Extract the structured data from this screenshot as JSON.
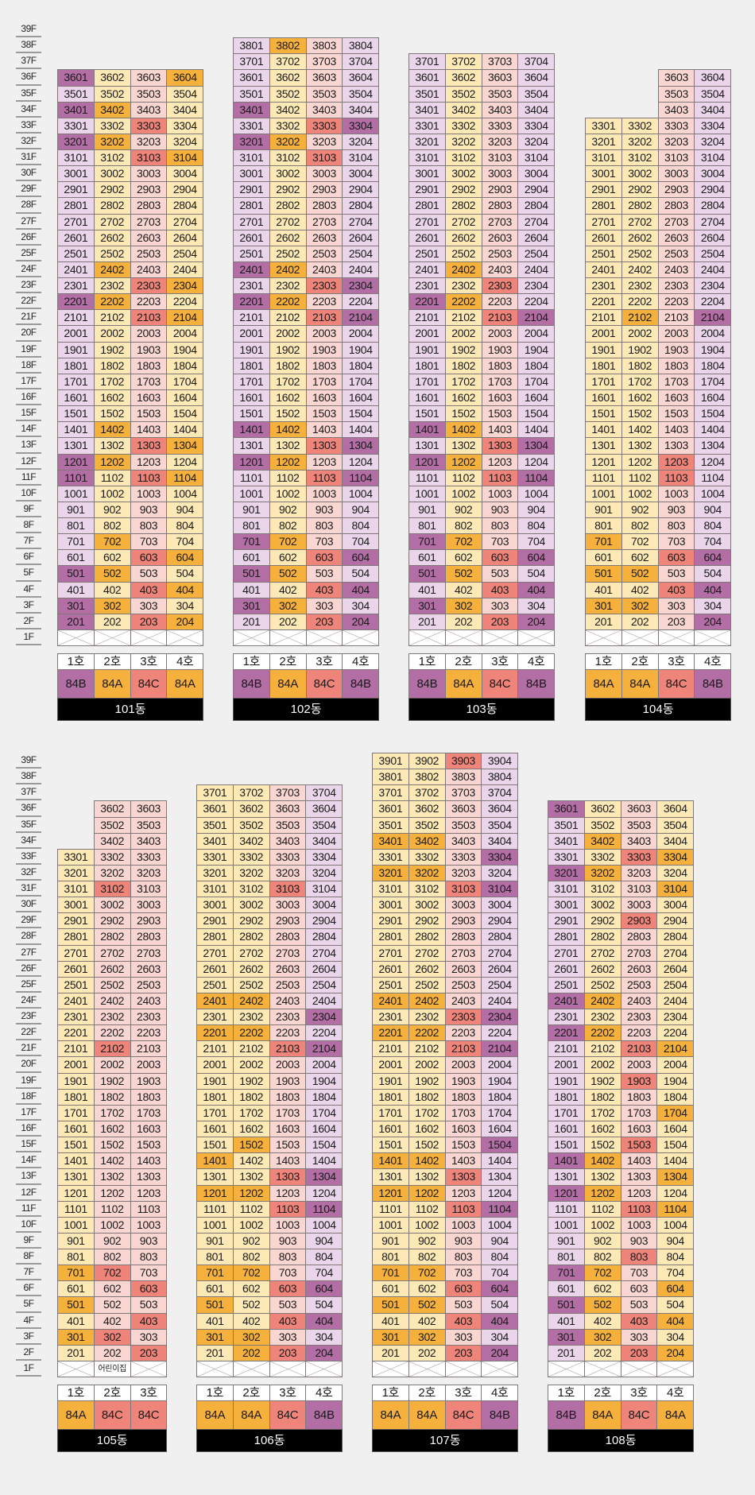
{
  "floor_labels": [
    "39F",
    "38F",
    "37F",
    "36F",
    "35F",
    "34F",
    "33F",
    "32F",
    "31F",
    "30F",
    "29F",
    "28F",
    "27F",
    "26F",
    "25F",
    "24F",
    "23F",
    "22F",
    "21F",
    "20F",
    "19F",
    "18F",
    "17F",
    "16F",
    "15F",
    "14F",
    "13F",
    "12F",
    "11F",
    "10F",
    "9F",
    "8F",
    "7F",
    "6F",
    "5F",
    "4F",
    "3F",
    "2F",
    "1F"
  ],
  "type_colors": {
    "84A": {
      "light": "#fde9b6",
      "dark": "#f6b03c"
    },
    "84B": {
      "light": "#ead5ea",
      "dark": "#b46ea6"
    },
    "84C": {
      "light": "#f9d6d1",
      "dark": "#ef857a"
    }
  },
  "sections": [
    {
      "buildings": [
        {
          "name": "101동",
          "units": [
            {
              "label": "1호",
              "type": "84B",
              "floors": [
                2,
                36
              ]
            },
            {
              "label": "2호",
              "type": "84A",
              "floors": [
                2,
                36
              ]
            },
            {
              "label": "3호",
              "type": "84C",
              "floors": [
                2,
                36
              ]
            },
            {
              "label": "4호",
              "type": "84A",
              "floors": [
                2,
                36
              ]
            }
          ],
          "first_floor": [
            null,
            null,
            null,
            null
          ],
          "highlighted": [
            "3601",
            "3604",
            "3401",
            "3402",
            "3303",
            "3201",
            "3202",
            "3103",
            "3104",
            "2402",
            "2303",
            "2304",
            "2201",
            "2202",
            "2103",
            "2104",
            "1402",
            "1303",
            "1304",
            "1201",
            "1202",
            "1101",
            "1103",
            "1104",
            "702",
            "603",
            "604",
            "501",
            "502",
            "403",
            "404",
            "301",
            "302",
            "201",
            "203",
            "204"
          ]
        },
        {
          "name": "102동",
          "units": [
            {
              "label": "1호",
              "type": "84B",
              "floors": [
                2,
                38
              ]
            },
            {
              "label": "2호",
              "type": "84A",
              "floors": [
                2,
                38
              ]
            },
            {
              "label": "3호",
              "type": "84C",
              "floors": [
                2,
                38
              ]
            },
            {
              "label": "4호",
              "type": "84B",
              "floors": [
                2,
                38
              ]
            }
          ],
          "first_floor": [
            null,
            null,
            null,
            null
          ],
          "highlighted": [
            "3802",
            "3401",
            "3303",
            "3304",
            "3201",
            "3202",
            "3103",
            "2401",
            "2402",
            "2303",
            "2304",
            "2201",
            "2202",
            "2103",
            "2104",
            "1401",
            "1402",
            "1303",
            "1304",
            "1201",
            "1202",
            "1103",
            "1104",
            "701",
            "702",
            "603",
            "604",
            "501",
            "502",
            "403",
            "404",
            "301",
            "302",
            "203",
            "204"
          ]
        },
        {
          "name": "103동",
          "units": [
            {
              "label": "1호",
              "type": "84B",
              "floors": [
                2,
                37
              ]
            },
            {
              "label": "2호",
              "type": "84A",
              "floors": [
                2,
                37
              ]
            },
            {
              "label": "3호",
              "type": "84C",
              "floors": [
                2,
                37
              ]
            },
            {
              "label": "4호",
              "type": "84B",
              "floors": [
                2,
                37
              ]
            }
          ],
          "first_floor": [
            null,
            null,
            null,
            null
          ],
          "highlighted": [
            "2402",
            "2303",
            "2201",
            "2202",
            "2103",
            "2104",
            "1401",
            "1402",
            "1303",
            "1304",
            "1201",
            "1202",
            "1103",
            "1104",
            "701",
            "702",
            "603",
            "604",
            "501",
            "502",
            "403",
            "404",
            "301",
            "302",
            "203",
            "204"
          ]
        },
        {
          "name": "104동",
          "units": [
            {
              "label": "1호",
              "type": "84A",
              "floors": [
                2,
                33
              ]
            },
            {
              "label": "2호",
              "type": "84A",
              "floors": [
                2,
                33
              ]
            },
            {
              "label": "3호",
              "type": "84C",
              "floors": [
                2,
                36
              ]
            },
            {
              "label": "4호",
              "type": "84B",
              "floors": [
                2,
                36
              ]
            }
          ],
          "first_floor": [
            null,
            null,
            null,
            null
          ],
          "highlighted": [
            "2102",
            "2104",
            "1203",
            "1103",
            "701",
            "603",
            "604",
            "501",
            "502",
            "403",
            "404",
            "301",
            "302",
            "204"
          ]
        }
      ]
    },
    {
      "buildings": [
        {
          "name": "105동",
          "units": [
            {
              "label": "1호",
              "type": "84A",
              "floors": [
                2,
                33
              ]
            },
            {
              "label": "2호",
              "type": "84C",
              "floors": [
                2,
                36
              ]
            },
            {
              "label": "3호",
              "type": "84C",
              "floors": [
                2,
                36
              ]
            }
          ],
          "first_floor": [
            null,
            "어린이집",
            null
          ],
          "highlighted": [
            "3102",
            "2102",
            "701",
            "702",
            "603",
            "501",
            "403",
            "301",
            "302",
            "203"
          ]
        },
        {
          "name": "106동",
          "units": [
            {
              "label": "1호",
              "type": "84A",
              "floors": [
                2,
                37
              ]
            },
            {
              "label": "2호",
              "type": "84A",
              "floors": [
                2,
                37
              ]
            },
            {
              "label": "3호",
              "type": "84C",
              "floors": [
                2,
                37
              ]
            },
            {
              "label": "4호",
              "type": "84B",
              "floors": [
                2,
                37
              ]
            }
          ],
          "first_floor": [
            null,
            null,
            null,
            null
          ],
          "highlighted": [
            "3103",
            "2401",
            "2402",
            "2304",
            "2201",
            "2202",
            "2103",
            "2104",
            "1502",
            "1401",
            "1303",
            "1304",
            "1201",
            "1202",
            "1103",
            "1104",
            "701",
            "702",
            "603",
            "604",
            "501",
            "403",
            "404",
            "301",
            "302",
            "202",
            "203",
            "204"
          ]
        },
        {
          "name": "107동",
          "units": [
            {
              "label": "1호",
              "type": "84A",
              "floors": [
                2,
                39
              ]
            },
            {
              "label": "2호",
              "type": "84A",
              "floors": [
                2,
                39
              ]
            },
            {
              "label": "3호",
              "type": "84C",
              "floors": [
                2,
                39
              ]
            },
            {
              "label": "4호",
              "type": "84B",
              "floors": [
                2,
                39
              ]
            }
          ],
          "first_floor": [
            null,
            null,
            null,
            null
          ],
          "highlighted": [
            "3903",
            "3401",
            "3402",
            "3304",
            "3201",
            "3202",
            "3103",
            "3104",
            "2401",
            "2402",
            "2303",
            "2304",
            "2201",
            "2202",
            "2103",
            "2104",
            "1504",
            "1401",
            "1402",
            "1303",
            "1201",
            "1202",
            "1103",
            "1104",
            "701",
            "702",
            "603",
            "604",
            "501",
            "502",
            "403",
            "404",
            "301",
            "302",
            "203",
            "204"
          ]
        },
        {
          "name": "108동",
          "units": [
            {
              "label": "1호",
              "type": "84B",
              "floors": [
                2,
                36
              ]
            },
            {
              "label": "2호",
              "type": "84A",
              "floors": [
                2,
                36
              ]
            },
            {
              "label": "3호",
              "type": "84C",
              "floors": [
                2,
                36
              ]
            },
            {
              "label": "4호",
              "type": "84A",
              "floors": [
                2,
                36
              ]
            }
          ],
          "first_floor": [
            null,
            null,
            null,
            null
          ],
          "highlighted": [
            "3601",
            "3402",
            "3303",
            "3304",
            "3201",
            "3202",
            "3104",
            "2903",
            "2401",
            "2402",
            "2201",
            "2202",
            "2103",
            "2104",
            "1903",
            "1704",
            "1503",
            "1401",
            "1402",
            "1304",
            "1201",
            "1202",
            "1103",
            "1104",
            "803",
            "701",
            "702",
            "604",
            "501",
            "502",
            "403",
            "404",
            "301",
            "302",
            "203",
            "204"
          ]
        }
      ]
    }
  ]
}
